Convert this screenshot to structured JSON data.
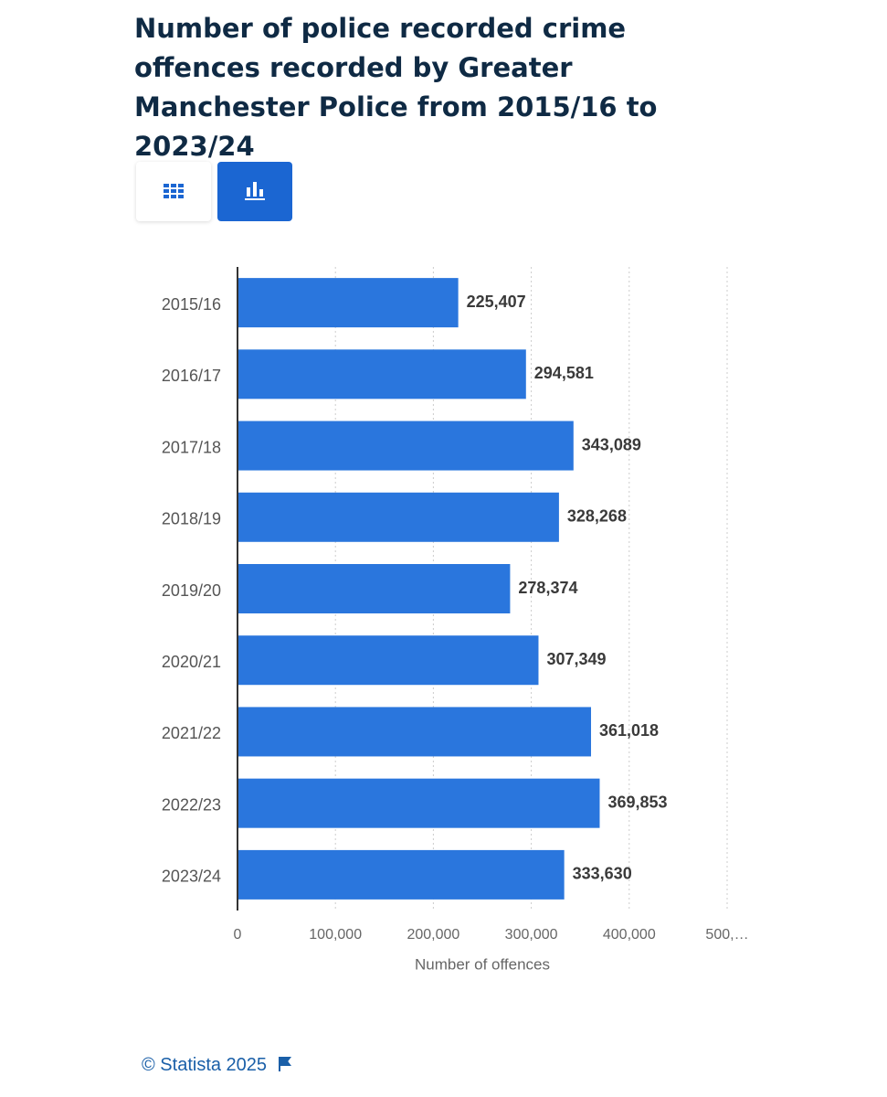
{
  "chart_data": {
    "type": "bar",
    "orientation": "horizontal",
    "title": "Number of police recorded crime offences recorded by Greater Manchester Police from 2015/16 to 2023/24",
    "categories": [
      "2015/16",
      "2016/17",
      "2017/18",
      "2018/19",
      "2019/20",
      "2020/21",
      "2021/22",
      "2022/23",
      "2023/24"
    ],
    "values": [
      225407,
      294581,
      343089,
      328268,
      278374,
      307349,
      361018,
      369853,
      333630
    ],
    "value_labels": [
      "225,407",
      "294,581",
      "343,089",
      "328,268",
      "278,374",
      "307,349",
      "361,018",
      "369,853",
      "333,630"
    ],
    "color": "#2a76dd",
    "xlim": [
      0,
      500000
    ],
    "xticks": [
      0,
      {
        "value": 100000,
        "label": "100,000"
      },
      {
        "value": 200000,
        "label": "200,000"
      },
      {
        "value": 300000,
        "label": "300,000"
      },
      {
        "value": 400000,
        "label": "400,000"
      },
      {
        "value": 500000,
        "label": "500,…"
      }
    ],
    "x_label": "Number of offences",
    "grid": true
  },
  "footer": {
    "source": "© Statista 2025"
  }
}
